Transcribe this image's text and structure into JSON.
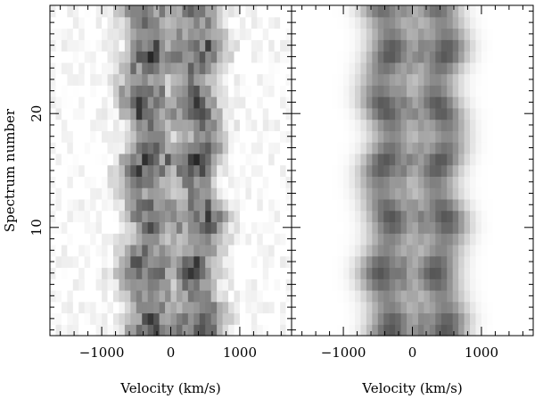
{
  "chart_data": [
    {
      "type": "heatmap",
      "panel": "observed",
      "xlabel": "Velocity (km/s)",
      "ylabel": "Spectrum number",
      "xlim": [
        -1750,
        1750
      ],
      "ylim": [
        0.5,
        29.5
      ],
      "x_ticks": [
        -1000,
        0,
        1000
      ],
      "x_tick_labels": [
        "−1000",
        "0",
        "1000"
      ],
      "y_ticks": [
        10,
        20
      ],
      "y_tick_labels": [
        "10",
        "20"
      ],
      "colormap": "inverted grayscale (dark = high intensity)",
      "n_spectra": 29,
      "n_velocity_bins": 42
    },
    {
      "type": "heatmap",
      "panel": "model",
      "xlabel": "Velocity (km/s)",
      "xlim": [
        -1750,
        1750
      ],
      "ylim": [
        0.5,
        29.5
      ],
      "x_ticks": [
        -1000,
        0,
        1000
      ],
      "x_tick_labels": [
        "−1000",
        "0",
        "1000"
      ],
      "y_ticks": [
        10,
        20
      ],
      "colormap": "inverted grayscale (dark = high intensity)",
      "n_spectra": 29,
      "n_velocity_bins": 42
    }
  ],
  "colors": {
    "frame": "#000000",
    "background": "#ffffff"
  }
}
